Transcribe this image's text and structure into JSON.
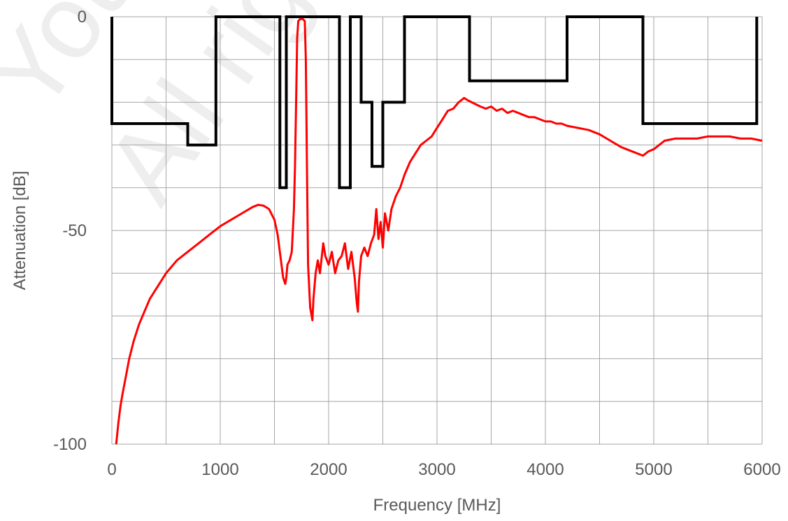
{
  "chart_data": {
    "type": "line",
    "xlabel": "Frequency [MHz]",
    "ylabel": "Attenuation  [dB]",
    "xlim": [
      0,
      6000
    ],
    "ylim": [
      -100,
      0
    ],
    "x_ticks": [
      0,
      1000,
      2000,
      3000,
      4000,
      5000,
      6000
    ],
    "x_tick_labels": [
      "0",
      "1000",
      "2000",
      "3000",
      "4000",
      "5000",
      "6000"
    ],
    "y_ticks": [
      0,
      -50,
      -100
    ],
    "y_tick_labels": [
      "0",
      "-50",
      "-100"
    ],
    "grid": true,
    "legend": "none",
    "colors": {
      "response": "#ff0000",
      "mask": "#000000",
      "grid": "#a6a6a6",
      "text": "#595959"
    },
    "watermark": [
      "You",
      "All right"
    ],
    "series": [
      {
        "kind": "mask",
        "color": "#000000",
        "x": [
          0,
          0,
          700,
          700,
          960,
          960,
          1550,
          1550,
          1610,
          1610,
          2100,
          2100,
          2200,
          2200,
          2300,
          2300,
          2400,
          2400,
          2500,
          2500,
          2700,
          2700,
          3300,
          3300,
          4200,
          4200,
          4900,
          4900,
          5950,
          5950
        ],
        "y": [
          0,
          -25,
          -25,
          -30,
          -30,
          0,
          0,
          -40,
          -40,
          0,
          0,
          -40,
          -40,
          0,
          0,
          -20,
          -20,
          -35,
          -35,
          -20,
          -20,
          0,
          0,
          -15,
          -15,
          0,
          0,
          -25,
          -25,
          0
        ]
      },
      {
        "kind": "response",
        "color": "#ff0000",
        "x": [
          40,
          60,
          80,
          100,
          130,
          160,
          200,
          250,
          300,
          350,
          400,
          450,
          500,
          600,
          700,
          800,
          900,
          1000,
          1100,
          1200,
          1300,
          1350,
          1400,
          1450,
          1500,
          1530,
          1560,
          1580,
          1600,
          1610,
          1620,
          1640,
          1660,
          1680,
          1690,
          1700,
          1710,
          1720,
          1740,
          1760,
          1780,
          1790,
          1800,
          1810,
          1830,
          1850,
          1860,
          1880,
          1900,
          1920,
          1950,
          1970,
          2000,
          2030,
          2060,
          2090,
          2120,
          2150,
          2180,
          2210,
          2240,
          2260,
          2270,
          2280,
          2300,
          2330,
          2360,
          2390,
          2420,
          2440,
          2460,
          2480,
          2500,
          2520,
          2550,
          2580,
          2620,
          2660,
          2700,
          2750,
          2800,
          2850,
          2900,
          2950,
          3000,
          3050,
          3100,
          3150,
          3200,
          3250,
          3280,
          3320,
          3360,
          3400,
          3450,
          3500,
          3550,
          3600,
          3650,
          3700,
          3750,
          3800,
          3850,
          3900,
          3950,
          4000,
          4050,
          4100,
          4150,
          4200,
          4300,
          4400,
          4500,
          4600,
          4700,
          4800,
          4850,
          4900,
          4950,
          5000,
          5050,
          5100,
          5200,
          5300,
          5400,
          5500,
          5600,
          5700,
          5800,
          5900,
          6000
        ],
        "y": [
          -100,
          -95,
          -91,
          -88,
          -84,
          -80,
          -76,
          -72,
          -69,
          -66,
          -64,
          -62,
          -60,
          -57,
          -55,
          -53,
          -51,
          -49,
          -47.5,
          -46,
          -44.5,
          -44,
          -44.2,
          -45,
          -47.5,
          -51,
          -57,
          -61,
          -62.5,
          -61,
          -58,
          -57,
          -55,
          -45,
          -35,
          -20,
          -5,
          -1,
          -0.5,
          -0.5,
          -1,
          -10,
          -35,
          -58,
          -68,
          -71,
          -66,
          -60,
          -57,
          -60,
          -53,
          -56,
          -58,
          -55,
          -60,
          -57,
          -56,
          -53,
          -59,
          -55,
          -61,
          -67,
          -69,
          -62,
          -56,
          -54,
          -56,
          -53,
          -51,
          -45,
          -52,
          -48,
          -54,
          -46,
          -50,
          -45,
          -42,
          -40,
          -37,
          -34,
          -32,
          -30,
          -29,
          -28,
          -26,
          -24,
          -22,
          -21.5,
          -20,
          -19,
          -19.5,
          -20,
          -20.5,
          -21,
          -21.5,
          -21,
          -22,
          -21.5,
          -22.5,
          -22,
          -22.5,
          -23,
          -23.5,
          -23.5,
          -24,
          -24.5,
          -24.5,
          -25,
          -25,
          -25.5,
          -26,
          -26.5,
          -27.5,
          -29,
          -30.5,
          -31.5,
          -32,
          -32.5,
          -31.5,
          -31,
          -30,
          -29,
          -28.5,
          -28.5,
          -28.5,
          -28,
          -28,
          -28,
          -28.5,
          -28.5,
          -29
        ]
      }
    ]
  }
}
